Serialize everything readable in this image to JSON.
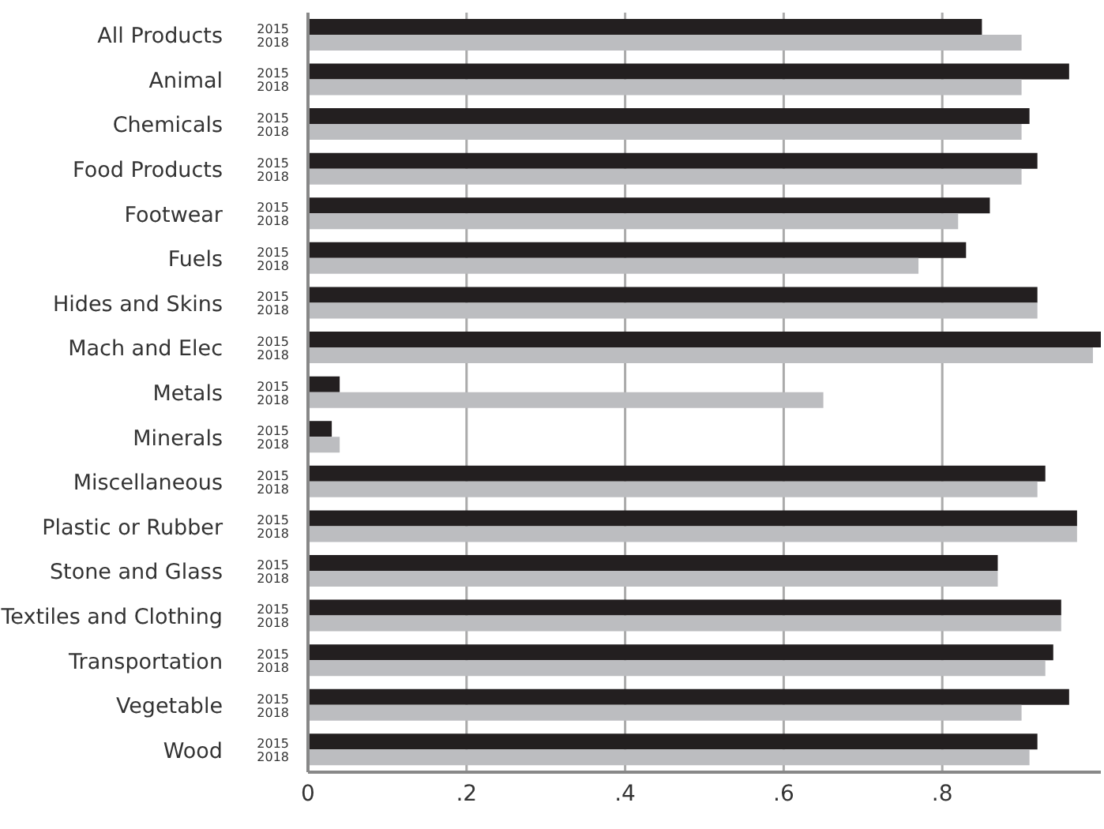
{
  "chart_data": {
    "type": "bar",
    "orientation": "horizontal",
    "categories": [
      "All Products",
      "Animal",
      "Chemicals",
      "Food Products",
      "Footwear",
      "Fuels",
      "Hides and Skins",
      "Mach and Elec",
      "Metals",
      "Minerals",
      "Miscellaneous",
      "Plastic or Rubber",
      "Stone and Glass",
      "Textiles and Clothing",
      "Transportation",
      "Vegetable",
      "Wood"
    ],
    "series": [
      {
        "name": "2015",
        "color": "#231f20",
        "values": [
          0.85,
          0.96,
          0.91,
          0.92,
          0.86,
          0.83,
          0.92,
          1.0,
          0.04,
          0.03,
          0.93,
          0.97,
          0.87,
          0.95,
          0.94,
          0.96,
          0.92
        ]
      },
      {
        "name": "2018",
        "color": "#bcbdc0",
        "values": [
          0.9,
          0.9,
          0.9,
          0.9,
          0.82,
          0.77,
          0.92,
          0.99,
          0.65,
          0.04,
          0.92,
          0.97,
          0.87,
          0.95,
          0.93,
          0.9,
          0.91
        ]
      }
    ],
    "xlim": [
      0,
      1
    ],
    "xticks": [
      0,
      {
        "value": 0.2,
        "label": ".2"
      },
      {
        "value": 0.4,
        "label": ".4"
      },
      {
        "value": 0.6,
        "label": ".6"
      },
      {
        "value": 0.8,
        "label": ".8"
      }
    ],
    "grid": "x",
    "legend": false
  }
}
